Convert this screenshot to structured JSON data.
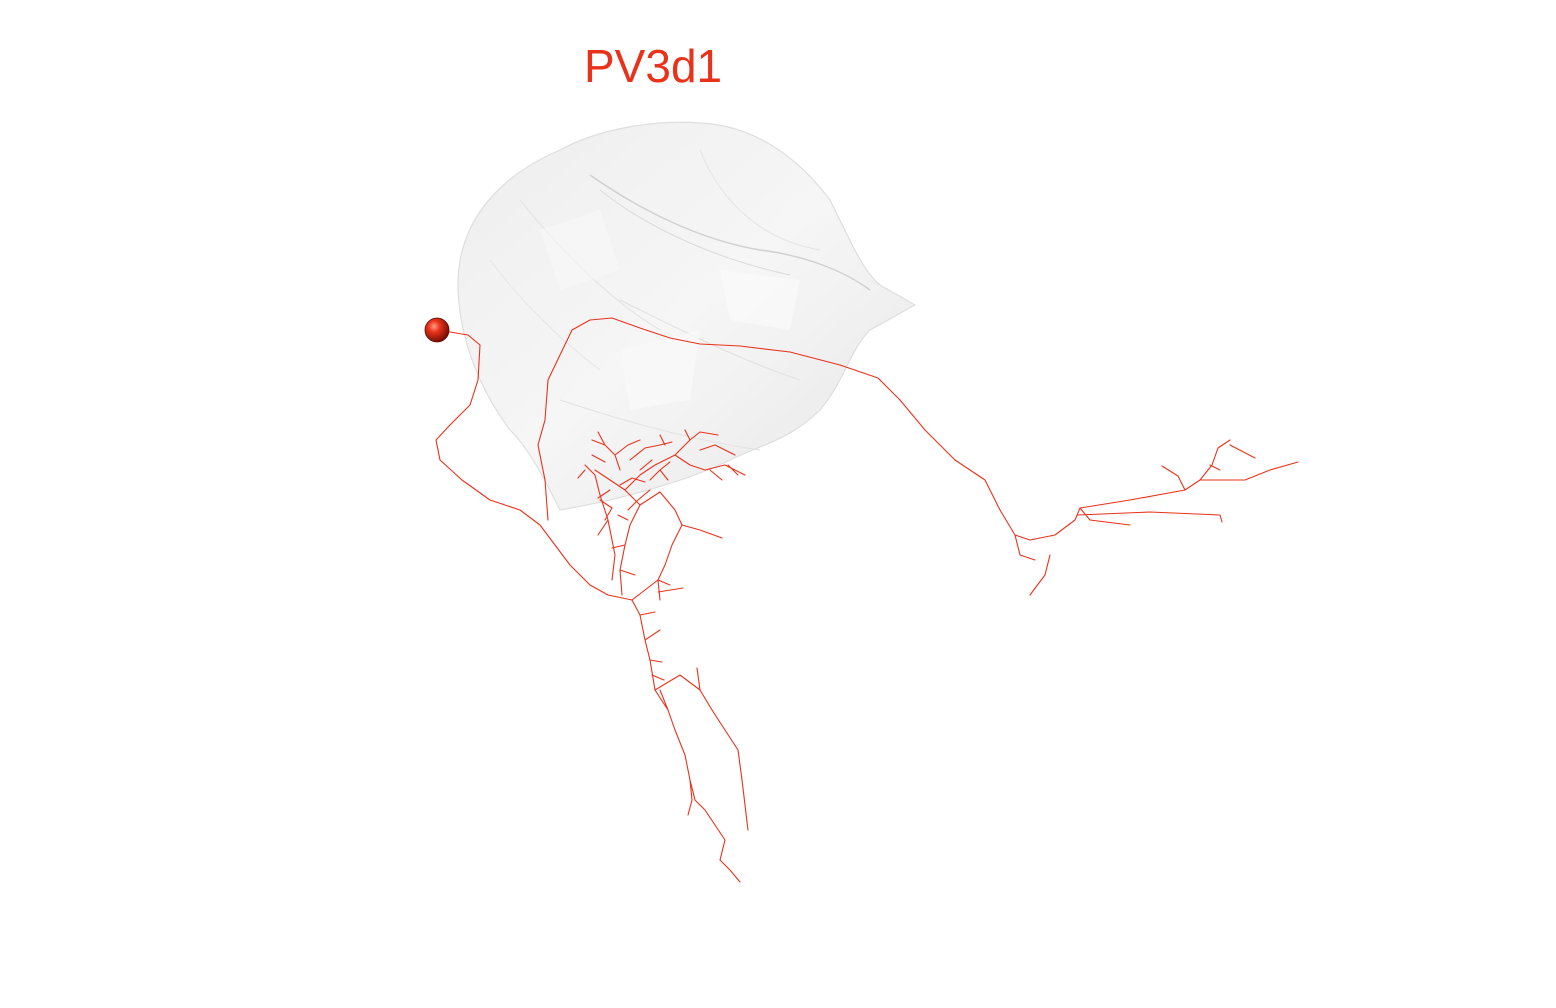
{
  "title": "PV3d1",
  "colors": {
    "neuron": "#e8321c",
    "soma": "#c01a08",
    "neuropil": "#d9d9d9",
    "title": "#e8321c"
  }
}
